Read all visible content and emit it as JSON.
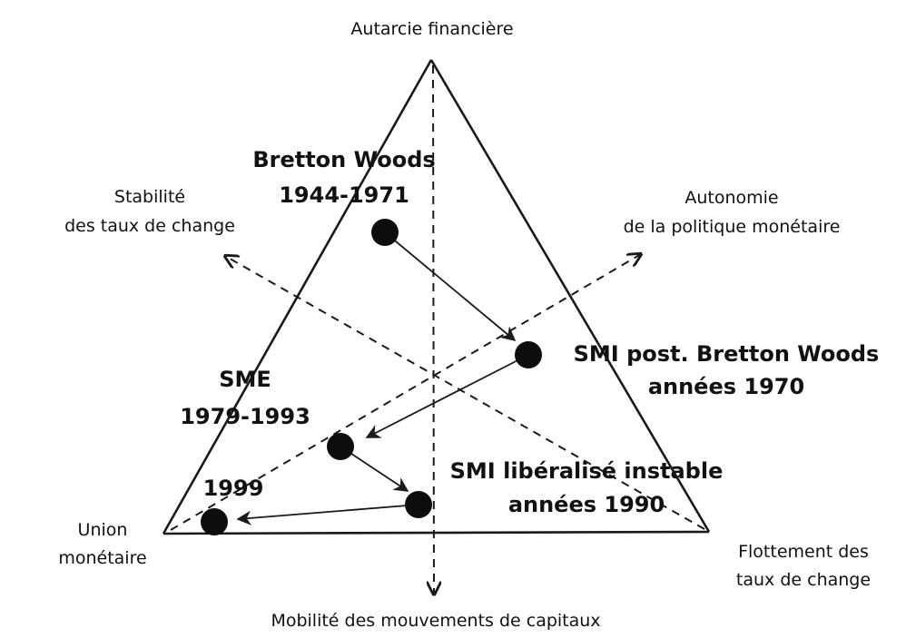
{
  "corners": {
    "top": "Autarcie financière",
    "left": [
      "Union",
      "monétaire"
    ],
    "right": [
      "Flottement des",
      "taux de change"
    ]
  },
  "axes": {
    "exchange_stability": [
      "Stabilité",
      "des taux de change"
    ],
    "monetary_autonomy": [
      "Autonomie",
      "de la politique monétaire"
    ],
    "capital_mobility": "Mobilité des mouvements de capitaux"
  },
  "phases": {
    "bretton_woods": [
      "Bretton Woods",
      "1944-1971"
    ],
    "smi_post_bw": [
      "SMI post. Bretton Woods",
      "années 1970"
    ],
    "sme": [
      "SME",
      "1979-1993"
    ],
    "smi_liberalise": [
      "SMI libéralisé instable",
      "années 1990"
    ],
    "union_1999": "1999"
  }
}
